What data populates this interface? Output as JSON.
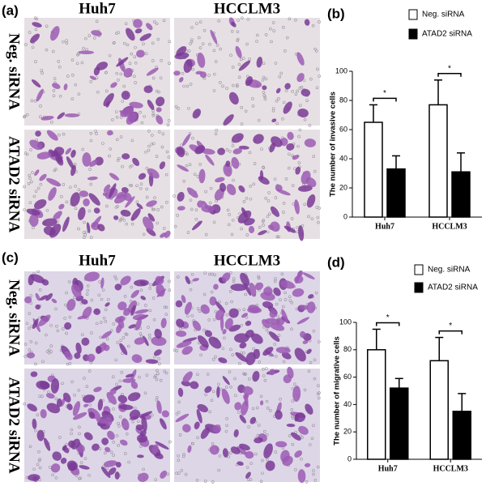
{
  "images": [
    {
      "panel": "(a)",
      "columns": [
        "Huh7",
        "HCCLM3"
      ],
      "rows": [
        "Neg. siRNA",
        "ATAD2 siRNA"
      ]
    },
    {
      "panel": "(c)",
      "columns": [
        "Huh7",
        "HCCLM3"
      ],
      "rows": [
        "Neg. siRNA",
        "ATAD2 siRNA"
      ]
    }
  ],
  "chart_data": [
    {
      "type": "bar",
      "panel": "(b)",
      "y_label": "The number of invasive cells",
      "categories": [
        "Huh7",
        "HCCLM3"
      ],
      "series": [
        {
          "name": "Neg. siRNA",
          "color": "#ffffff",
          "values": [
            65,
            77
          ],
          "errors": [
            12,
            17
          ]
        },
        {
          "name": "ATAD2 siRNA",
          "color": "#000000",
          "values": [
            33,
            31
          ],
          "errors": [
            9,
            13
          ]
        }
      ],
      "annotations": [
        {
          "text": "*",
          "category": 0
        },
        {
          "text": "*",
          "category": 1
        }
      ],
      "ylim": [
        0,
        100
      ],
      "yticks": [
        0,
        20,
        40,
        60,
        80,
        100
      ]
    },
    {
      "type": "bar",
      "panel": "(d)",
      "y_label": "The number of migrative cells",
      "categories": [
        "Huh7",
        "HCCLM3"
      ],
      "series": [
        {
          "name": "Neg. siRNA",
          "color": "#ffffff",
          "values": [
            80,
            72
          ],
          "errors": [
            15,
            17
          ]
        },
        {
          "name": "ATAD2 siRNA",
          "color": "#000000",
          "values": [
            52,
            35
          ],
          "errors": [
            7,
            13
          ]
        }
      ],
      "annotations": [
        {
          "text": "*",
          "category": 0
        },
        {
          "text": "*",
          "category": 1
        }
      ],
      "ylim": [
        0,
        100
      ],
      "yticks": [
        0,
        20,
        40,
        60,
        80,
        100
      ]
    }
  ]
}
